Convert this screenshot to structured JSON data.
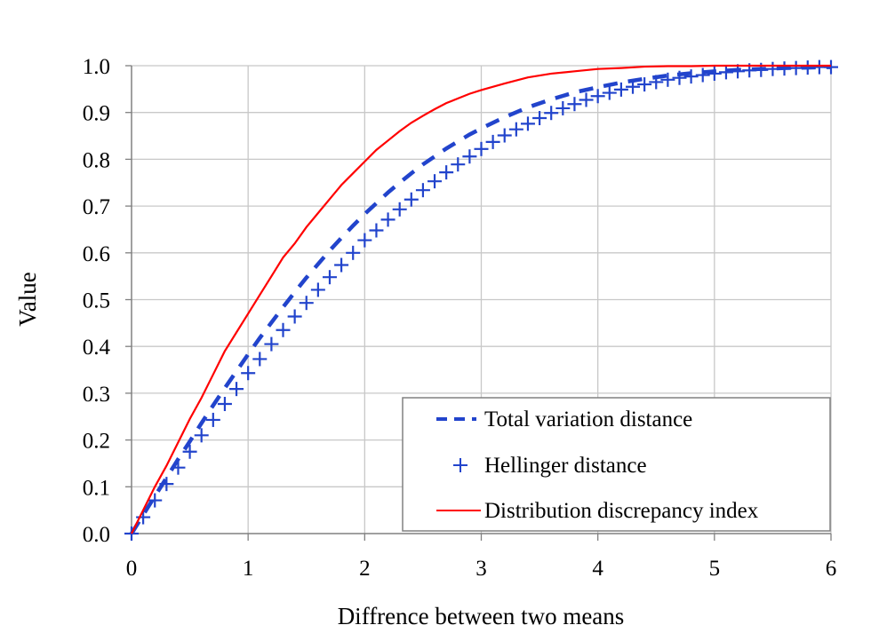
{
  "chart_data": {
    "type": "line",
    "title": "",
    "xlabel": "Diffrence between two means",
    "ylabel": "Value",
    "xlim": [
      0,
      6
    ],
    "ylim": [
      0,
      1
    ],
    "xticks": [
      "0",
      "1",
      "2",
      "3",
      "4",
      "5",
      "6"
    ],
    "yticks": [
      "0.0",
      "0.1",
      "0.2",
      "0.3",
      "0.4",
      "0.5",
      "0.6",
      "0.7",
      "0.8",
      "0.9",
      "1.0"
    ],
    "grid": true,
    "legend_position": "bottom-right",
    "colors": {
      "tv": "#2244cc",
      "hellinger": "#2244cc",
      "ddi": "#ff0000",
      "grid": "#c8c8c8",
      "axis": "#808080"
    },
    "series": [
      {
        "name": "Total variation distance",
        "style": "dashed",
        "x": [
          0,
          0.1,
          0.2,
          0.3,
          0.4,
          0.5,
          0.6,
          0.7,
          0.8,
          0.9,
          1.0,
          1.1,
          1.2,
          1.3,
          1.4,
          1.5,
          1.6,
          1.7,
          1.8,
          1.9,
          2.0,
          2.1,
          2.2,
          2.3,
          2.4,
          2.5,
          2.6,
          2.7,
          2.8,
          2.9,
          3.0,
          3.2,
          3.4,
          3.6,
          3.8,
          4.0,
          4.2,
          4.4,
          4.6,
          4.8,
          5.0,
          5.2,
          5.4,
          5.6,
          5.8,
          6.0
        ],
        "values": [
          0,
          0.04,
          0.08,
          0.119,
          0.159,
          0.197,
          0.236,
          0.274,
          0.311,
          0.347,
          0.383,
          0.418,
          0.451,
          0.484,
          0.516,
          0.547,
          0.576,
          0.605,
          0.632,
          0.658,
          0.683,
          0.706,
          0.729,
          0.75,
          0.77,
          0.789,
          0.806,
          0.823,
          0.838,
          0.853,
          0.866,
          0.89,
          0.911,
          0.928,
          0.943,
          0.954,
          0.964,
          0.972,
          0.979,
          0.984,
          0.988,
          0.991,
          0.993,
          0.995,
          0.996,
          0.997
        ]
      },
      {
        "name": "Hellinger distance",
        "style": "plus-markers",
        "x": [
          0,
          0.1,
          0.2,
          0.3,
          0.4,
          0.5,
          0.6,
          0.7,
          0.8,
          0.9,
          1.0,
          1.1,
          1.2,
          1.3,
          1.4,
          1.5,
          1.6,
          1.7,
          1.8,
          1.9,
          2.0,
          2.1,
          2.2,
          2.3,
          2.4,
          2.5,
          2.6,
          2.7,
          2.8,
          2.9,
          3.0,
          3.1,
          3.2,
          3.3,
          3.4,
          3.5,
          3.6,
          3.7,
          3.8,
          3.9,
          4.0,
          4.1,
          4.2,
          4.3,
          4.4,
          4.5,
          4.6,
          4.7,
          4.8,
          4.9,
          5.0,
          5.1,
          5.2,
          5.3,
          5.4,
          5.5,
          5.6,
          5.7,
          5.8,
          5.9,
          6.0
        ],
        "values": [
          0,
          0.035,
          0.071,
          0.106,
          0.141,
          0.175,
          0.21,
          0.243,
          0.277,
          0.309,
          0.343,
          0.373,
          0.405,
          0.435,
          0.464,
          0.493,
          0.521,
          0.548,
          0.574,
          0.6,
          0.627,
          0.648,
          0.671,
          0.693,
          0.714,
          0.734,
          0.753,
          0.772,
          0.789,
          0.806,
          0.822,
          0.837,
          0.851,
          0.864,
          0.876,
          0.888,
          0.899,
          0.909,
          0.918,
          0.927,
          0.935,
          0.942,
          0.949,
          0.955,
          0.96,
          0.965,
          0.97,
          0.974,
          0.977,
          0.98,
          0.983,
          0.986,
          0.988,
          0.99,
          0.991,
          0.993,
          0.994,
          0.995,
          0.996,
          0.997,
          0.997
        ]
      },
      {
        "name": "Distribution discrepancy index",
        "style": "solid",
        "x": [
          0,
          0.1,
          0.2,
          0.3,
          0.4,
          0.5,
          0.6,
          0.7,
          0.8,
          0.9,
          1.0,
          1.1,
          1.2,
          1.3,
          1.4,
          1.5,
          1.6,
          1.7,
          1.8,
          1.9,
          2.0,
          2.1,
          2.2,
          2.3,
          2.4,
          2.5,
          2.6,
          2.7,
          2.8,
          2.9,
          3.0,
          3.2,
          3.4,
          3.6,
          3.8,
          4.0,
          4.2,
          4.4,
          4.6,
          4.8,
          5.0,
          5.5,
          6.0
        ],
        "values": [
          0,
          0.05,
          0.1,
          0.145,
          0.195,
          0.245,
          0.29,
          0.34,
          0.39,
          0.43,
          0.47,
          0.51,
          0.55,
          0.59,
          0.62,
          0.655,
          0.685,
          0.715,
          0.745,
          0.77,
          0.795,
          0.82,
          0.84,
          0.86,
          0.878,
          0.893,
          0.907,
          0.92,
          0.93,
          0.94,
          0.948,
          0.962,
          0.975,
          0.983,
          0.988,
          0.993,
          0.995,
          0.998,
          0.999,
          0.999,
          1.0,
          1.0,
          1.0
        ]
      }
    ]
  },
  "legend": {
    "items": [
      {
        "label": "Total variation distance"
      },
      {
        "label": "Hellinger distance"
      },
      {
        "label": "Distribution discrepancy index"
      }
    ]
  }
}
